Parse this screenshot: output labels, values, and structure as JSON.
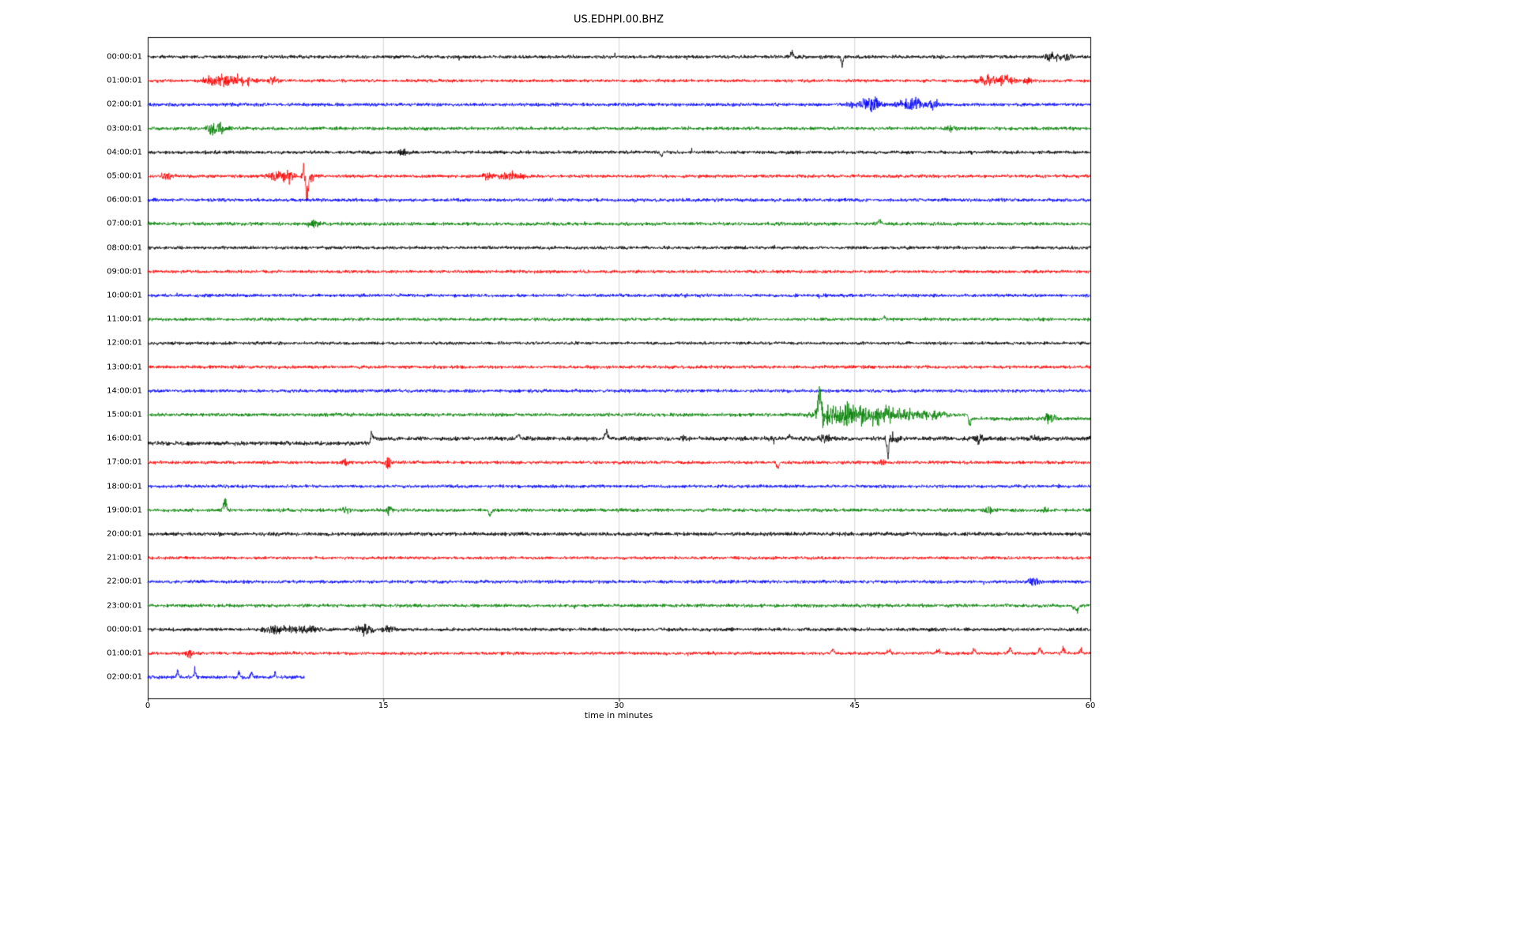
{
  "chart_data": {
    "type": "line",
    "variant": "seismogram-helicorder",
    "title": "US.EDHPI.00.BHZ",
    "xlabel": "time in minutes",
    "x_range": [
      0,
      60
    ],
    "x_ticks": [
      0,
      15,
      30,
      45,
      60
    ],
    "grid": "vertical gridlines at 15, 30, 45",
    "legend": "none",
    "colors_cycle": [
      "#000000",
      "#ff0000",
      "#0000ff",
      "#008000"
    ],
    "rows": [
      {
        "label": "00:00:01",
        "color": "#000000",
        "amp": 2.0,
        "seed": 101,
        "events": [
          {
            "t": 41.0,
            "a": 5,
            "w": 0.07,
            "b": 1
          },
          {
            "t": 44.2,
            "a": 10,
            "w": 0.06,
            "b": -1
          },
          {
            "t": 57.6,
            "a": 4,
            "w": 0.35,
            "b": 0
          },
          {
            "t": 58.6,
            "a": 3.5,
            "w": 0.25,
            "b": 0
          }
        ]
      },
      {
        "label": "01:00:01",
        "color": "#ff0000",
        "amp": 1.8,
        "seed": 202,
        "events": [
          {
            "t": 4.3,
            "a": 5,
            "w": 0.5,
            "b": 0
          },
          {
            "t": 5.3,
            "a": 6,
            "w": 0.4,
            "b": 0
          },
          {
            "t": 6.3,
            "a": 4,
            "w": 0.4,
            "b": 0
          },
          {
            "t": 8.0,
            "a": 3,
            "w": 0.3,
            "b": 0
          },
          {
            "t": 53.4,
            "a": 6,
            "w": 0.4,
            "b": 0
          },
          {
            "t": 54.6,
            "a": 5,
            "w": 0.35,
            "b": 0
          },
          {
            "t": 56.0,
            "a": 3,
            "w": 0.2,
            "b": 0
          }
        ]
      },
      {
        "label": "02:00:01",
        "color": "#0000ff",
        "amp": 2.0,
        "seed": 303,
        "events": [
          {
            "t": 45.6,
            "a": 6,
            "w": 0.5,
            "b": 0
          },
          {
            "t": 46.3,
            "a": 4,
            "w": 0.3,
            "b": 0
          },
          {
            "t": 48.6,
            "a": 6,
            "w": 0.6,
            "b": 0
          },
          {
            "t": 50.1,
            "a": 4,
            "w": 0.25,
            "b": 0
          }
        ]
      },
      {
        "label": "03:00:01",
        "color": "#008000",
        "amp": 2.0,
        "seed": 404,
        "events": [
          {
            "t": 4.1,
            "a": 7,
            "w": 0.3,
            "b": 0
          },
          {
            "t": 4.8,
            "a": 4,
            "w": 0.25,
            "b": 0
          },
          {
            "t": 51.2,
            "a": 3,
            "w": 0.2,
            "b": 0
          }
        ]
      },
      {
        "label": "04:00:01",
        "color": "#000000",
        "amp": 2.0,
        "seed": 505,
        "events": [
          {
            "t": 16.2,
            "a": 2.5,
            "w": 0.2,
            "b": 0
          },
          {
            "t": 32.7,
            "a": 6,
            "w": 0.06,
            "b": -1
          }
        ]
      },
      {
        "label": "05:00:01",
        "color": "#ff0000",
        "amp": 1.9,
        "seed": 606,
        "events": [
          {
            "t": 1.2,
            "a": 3,
            "w": 0.25,
            "b": 0
          },
          {
            "t": 8.3,
            "a": 5,
            "w": 0.45,
            "b": 0
          },
          {
            "t": 9.0,
            "a": 5,
            "w": 0.35,
            "b": 0
          },
          {
            "t": 9.95,
            "a": 12,
            "w": 0.07,
            "b": 1
          },
          {
            "t": 10.1,
            "a": 22,
            "w": 0.09,
            "b": -1
          },
          {
            "t": 10.3,
            "a": 8,
            "w": 0.2,
            "b": 0
          },
          {
            "t": 21.6,
            "a": 3,
            "w": 0.3,
            "b": 0
          },
          {
            "t": 23.2,
            "a": 4,
            "w": 0.6,
            "b": 0
          }
        ]
      },
      {
        "label": "06:00:01",
        "color": "#0000ff",
        "amp": 2.0,
        "seed": 707,
        "events": []
      },
      {
        "label": "07:00:01",
        "color": "#008000",
        "amp": 2.0,
        "seed": 808,
        "events": [
          {
            "t": 10.6,
            "a": 6,
            "w": 0.22,
            "b": 0
          },
          {
            "t": 46.6,
            "a": 4,
            "w": 0.08,
            "b": 1
          }
        ]
      },
      {
        "label": "08:00:01",
        "color": "#000000",
        "amp": 1.9,
        "seed": 909,
        "events": []
      },
      {
        "label": "09:00:01",
        "color": "#ff0000",
        "amp": 1.8,
        "seed": 1010,
        "events": []
      },
      {
        "label": "10:00:01",
        "color": "#0000ff",
        "amp": 1.9,
        "seed": 1111,
        "events": []
      },
      {
        "label": "11:00:01",
        "color": "#008000",
        "amp": 1.9,
        "seed": 1212,
        "events": [
          {
            "t": 46.9,
            "a": 3,
            "w": 0.08,
            "b": 1
          }
        ]
      },
      {
        "label": "12:00:01",
        "color": "#000000",
        "amp": 1.8,
        "seed": 1313,
        "events": []
      },
      {
        "label": "13:00:01",
        "color": "#ff0000",
        "amp": 1.9,
        "seed": 1414,
        "events": []
      },
      {
        "label": "14:00:01",
        "color": "#0000ff",
        "amp": 1.9,
        "seed": 1515,
        "events": []
      },
      {
        "label": "15:00:01",
        "color": "#008000",
        "amp": 2.1,
        "seed": 1616,
        "segments": [
          {
            "from": 0,
            "to": 52.3,
            "dy": 0
          },
          {
            "from": 52.3,
            "to": 60,
            "dy": 5
          }
        ],
        "events": [
          {
            "t": 42.8,
            "a": 26,
            "w": 0.12,
            "b": 1
          },
          {
            "t": 42.95,
            "a": 10,
            "w": 0.1,
            "b": -1
          },
          {
            "t": 43.6,
            "a": 8,
            "w": 0.9,
            "b": 0
          },
          {
            "t": 45.2,
            "a": 9,
            "w": 0.9,
            "b": 0
          },
          {
            "t": 46.6,
            "a": 7,
            "w": 0.7,
            "b": 0
          },
          {
            "t": 48.2,
            "a": 5,
            "w": 0.7,
            "b": 0
          },
          {
            "t": 50.0,
            "a": 4,
            "w": 0.5,
            "b": 0
          },
          {
            "t": 52.3,
            "a": 8,
            "w": 0.07,
            "b": -1
          },
          {
            "t": 57.4,
            "a": 7,
            "w": 0.25,
            "b": 0
          }
        ]
      },
      {
        "label": "16:00:01",
        "color": "#000000",
        "amp": 2.4,
        "seed": 1717,
        "segments": [
          {
            "from": 0,
            "to": 14.2,
            "dy": 6
          },
          {
            "from": 14.2,
            "to": 60,
            "dy": 0
          }
        ],
        "events": [
          {
            "t": 14.25,
            "a": 6,
            "w": 0.08,
            "b": 1
          },
          {
            "t": 23.6,
            "a": 5,
            "w": 0.08,
            "b": 1
          },
          {
            "t": 29.2,
            "a": 9,
            "w": 0.09,
            "b": 1
          },
          {
            "t": 34.1,
            "a": 3,
            "w": 0.15,
            "b": 0
          },
          {
            "t": 40.9,
            "a": 4,
            "w": 0.08,
            "b": 1
          },
          {
            "t": 43.1,
            "a": 4,
            "w": 0.2,
            "b": 0
          },
          {
            "t": 47.1,
            "a": 18,
            "w": 0.07,
            "b": -1
          },
          {
            "t": 47.4,
            "a": 5,
            "w": 0.3,
            "b": 0
          },
          {
            "t": 52.9,
            "a": 6,
            "w": 0.15,
            "b": 0
          },
          {
            "t": 56.5,
            "a": 3,
            "w": 0.2,
            "b": 0
          }
        ]
      },
      {
        "label": "17:00:01",
        "color": "#ff0000",
        "amp": 1.9,
        "seed": 1818,
        "events": [
          {
            "t": 12.6,
            "a": 3,
            "w": 0.2,
            "b": 0
          },
          {
            "t": 15.3,
            "a": 6,
            "w": 0.12,
            "b": 0
          },
          {
            "t": 40.1,
            "a": 7,
            "w": 0.07,
            "b": -1
          },
          {
            "t": 46.8,
            "a": 3,
            "w": 0.1,
            "b": 0
          }
        ]
      },
      {
        "label": "18:00:01",
        "color": "#0000ff",
        "amp": 1.9,
        "seed": 1919,
        "events": []
      },
      {
        "label": "19:00:01",
        "color": "#008000",
        "amp": 2.0,
        "seed": 2020,
        "events": [
          {
            "t": 4.9,
            "a": 11,
            "w": 0.09,
            "b": 1
          },
          {
            "t": 12.6,
            "a": 4,
            "w": 0.2,
            "b": 0
          },
          {
            "t": 15.4,
            "a": 5,
            "w": 0.14,
            "b": 0
          },
          {
            "t": 21.8,
            "a": 8,
            "w": 0.07,
            "b": -1
          },
          {
            "t": 53.6,
            "a": 4,
            "w": 0.18,
            "b": 0
          },
          {
            "t": 57.1,
            "a": 3,
            "w": 0.15,
            "b": 0
          }
        ]
      },
      {
        "label": "20:00:01",
        "color": "#000000",
        "amp": 2.2,
        "seed": 2121,
        "events": []
      },
      {
        "label": "21:00:01",
        "color": "#ff0000",
        "amp": 1.8,
        "seed": 2222,
        "events": []
      },
      {
        "label": "22:00:01",
        "color": "#0000ff",
        "amp": 2.0,
        "seed": 2323,
        "events": [
          {
            "t": 56.4,
            "a": 4,
            "w": 0.25,
            "b": 0
          }
        ]
      },
      {
        "label": "23:00:01",
        "color": "#008000",
        "amp": 2.0,
        "seed": 2424,
        "events": [
          {
            "t": 59.1,
            "a": 6,
            "w": 0.12,
            "b": -1
          }
        ]
      },
      {
        "label": "00:00:01",
        "color": "#000000",
        "amp": 2.0,
        "seed": 2525,
        "events": [
          {
            "t": 8.1,
            "a": 3.5,
            "w": 0.5,
            "b": 0
          },
          {
            "t": 9.1,
            "a": 3,
            "w": 0.3,
            "b": 0
          },
          {
            "t": 10.2,
            "a": 3.5,
            "w": 0.4,
            "b": 0
          },
          {
            "t": 13.8,
            "a": 5,
            "w": 0.35,
            "b": 0
          },
          {
            "t": 15.4,
            "a": 4,
            "w": 0.25,
            "b": 0
          }
        ]
      },
      {
        "label": "01:00:01",
        "color": "#ff0000",
        "amp": 1.9,
        "seed": 2626,
        "events": [
          {
            "t": 2.6,
            "a": 5,
            "w": 0.15,
            "b": 0
          },
          {
            "t": 43.6,
            "a": 4,
            "w": 0.09,
            "b": 1
          },
          {
            "t": 47.2,
            "a": 4,
            "w": 0.09,
            "b": 1
          },
          {
            "t": 50.3,
            "a": 4,
            "w": 0.09,
            "b": 1
          },
          {
            "t": 52.6,
            "a": 4,
            "w": 0.09,
            "b": 1
          },
          {
            "t": 54.9,
            "a": 5,
            "w": 0.09,
            "b": 1
          },
          {
            "t": 56.8,
            "a": 5,
            "w": 0.09,
            "b": 1
          },
          {
            "t": 58.3,
            "a": 5,
            "w": 0.09,
            "b": 1
          },
          {
            "t": 59.4,
            "a": 4,
            "w": 0.09,
            "b": 1
          }
        ]
      },
      {
        "label": "02:00:01",
        "color": "#0000ff",
        "amp": 2.0,
        "seed": 2727,
        "end": 10,
        "events": [
          {
            "t": 1.9,
            "a": 7,
            "w": 0.06,
            "b": 1
          },
          {
            "t": 3.0,
            "a": 8,
            "w": 0.06,
            "b": 1
          },
          {
            "t": 5.8,
            "a": 6,
            "w": 0.06,
            "b": 1
          },
          {
            "t": 6.6,
            "a": 5,
            "w": 0.06,
            "b": 1
          },
          {
            "t": 8.1,
            "a": 4,
            "w": 0.06,
            "b": 1
          }
        ]
      }
    ]
  }
}
